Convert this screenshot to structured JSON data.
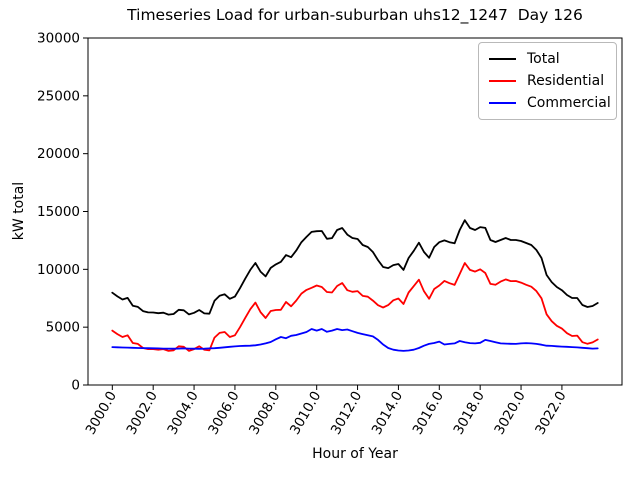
{
  "figure": {
    "background": "#ffffff",
    "axes_edge_color": "#000000"
  },
  "chart_data": {
    "type": "line",
    "title": "Timeseries Load for urban-suburban uhs12_1247  Day 126",
    "xlabel": "Hour of Year",
    "ylabel": "kW total",
    "xlim": [
      2998.81,
      3024.94
    ],
    "ylim": [
      0,
      30000
    ],
    "grid": false,
    "legend_position": "upper right",
    "x_ticks": [
      3000,
      3002,
      3004,
      3006,
      3008,
      3010,
      3012,
      3014,
      3016,
      3018,
      3020,
      3022
    ],
    "x_tick_labels": [
      "3000.0",
      "3002.0",
      "3004.0",
      "3006.0",
      "3008.0",
      "3010.0",
      "3012.0",
      "3014.0",
      "3016.0",
      "3018.0",
      "3020.0",
      "3022.0"
    ],
    "y_ticks": [
      0,
      5000,
      10000,
      15000,
      20000,
      25000,
      30000
    ],
    "y_tick_labels": [
      "0",
      "5000",
      "10000",
      "15000",
      "20000",
      "25000",
      "30000"
    ],
    "x_start": 3000.0,
    "x_step": 0.25,
    "series": [
      {
        "name": "Total",
        "color": "#000000",
        "values": [
          7980,
          7660,
          7390,
          7530,
          6850,
          6750,
          6390,
          6280,
          6270,
          6210,
          6250,
          6090,
          6140,
          6500,
          6460,
          6100,
          6240,
          6480,
          6190,
          6160,
          7280,
          7720,
          7840,
          7450,
          7640,
          8370,
          9190,
          9950,
          10550,
          9800,
          9390,
          10120,
          10430,
          10650,
          11230,
          11050,
          11620,
          12350,
          12800,
          13240,
          13300,
          13310,
          12640,
          12700,
          13400,
          13570,
          13000,
          12710,
          12620,
          12100,
          11930,
          11500,
          10800,
          10200,
          10110,
          10370,
          10460,
          9950,
          10980,
          11600,
          12300,
          11500,
          11000,
          11930,
          12350,
          12500,
          12350,
          12250,
          13400,
          14250,
          13570,
          13400,
          13650,
          13580,
          12540,
          12360,
          12540,
          12710,
          12540,
          12540,
          12450,
          12280,
          12100,
          11670,
          10980,
          9510,
          8900,
          8470,
          8200,
          7780,
          7520,
          7520,
          6920,
          6740,
          6830,
          7090
        ]
      },
      {
        "name": "Residential",
        "color": "#ff0000",
        "values": [
          4700,
          4400,
          4150,
          4300,
          3630,
          3550,
          3200,
          3100,
          3100,
          3050,
          3100,
          2950,
          3000,
          3350,
          3300,
          2950,
          3100,
          3350,
          3050,
          3000,
          4100,
          4500,
          4580,
          4150,
          4300,
          5000,
          5800,
          6550,
          7120,
          6300,
          5790,
          6400,
          6480,
          6500,
          7180,
          6800,
          7300,
          7900,
          8220,
          8400,
          8600,
          8470,
          8040,
          8000,
          8560,
          8820,
          8200,
          8060,
          8120,
          7700,
          7630,
          7300,
          6900,
          6700,
          6910,
          7320,
          7480,
          7000,
          8000,
          8550,
          9100,
          8100,
          7450,
          8300,
          8600,
          9000,
          8800,
          8650,
          9600,
          10550,
          9950,
          9800,
          10000,
          9680,
          8740,
          8660,
          8940,
          9130,
          8980,
          8990,
          8850,
          8660,
          8500,
          8120,
          7500,
          6110,
          5520,
          5120,
          4880,
          4480,
          4240,
          4270,
          3700,
          3560,
          3680,
          3930
        ]
      },
      {
        "name": "Commercial",
        "color": "#0000ff",
        "values": [
          3280,
          3260,
          3240,
          3230,
          3220,
          3200,
          3190,
          3180,
          3170,
          3160,
          3150,
          3140,
          3140,
          3150,
          3160,
          3150,
          3140,
          3130,
          3140,
          3160,
          3180,
          3220,
          3260,
          3300,
          3340,
          3370,
          3390,
          3400,
          3430,
          3500,
          3600,
          3720,
          3950,
          4150,
          4050,
          4250,
          4320,
          4450,
          4580,
          4840,
          4700,
          4840,
          4600,
          4700,
          4840,
          4750,
          4800,
          4650,
          4500,
          4400,
          4300,
          4200,
          3900,
          3500,
          3200,
          3050,
          2980,
          2950,
          2980,
          3050,
          3200,
          3400,
          3550,
          3630,
          3750,
          3500,
          3550,
          3600,
          3800,
          3700,
          3620,
          3600,
          3650,
          3900,
          3800,
          3700,
          3600,
          3580,
          3560,
          3550,
          3600,
          3620,
          3600,
          3550,
          3480,
          3400,
          3380,
          3350,
          3320,
          3300,
          3280,
          3250,
          3220,
          3180,
          3150,
          3160
        ]
      }
    ]
  }
}
